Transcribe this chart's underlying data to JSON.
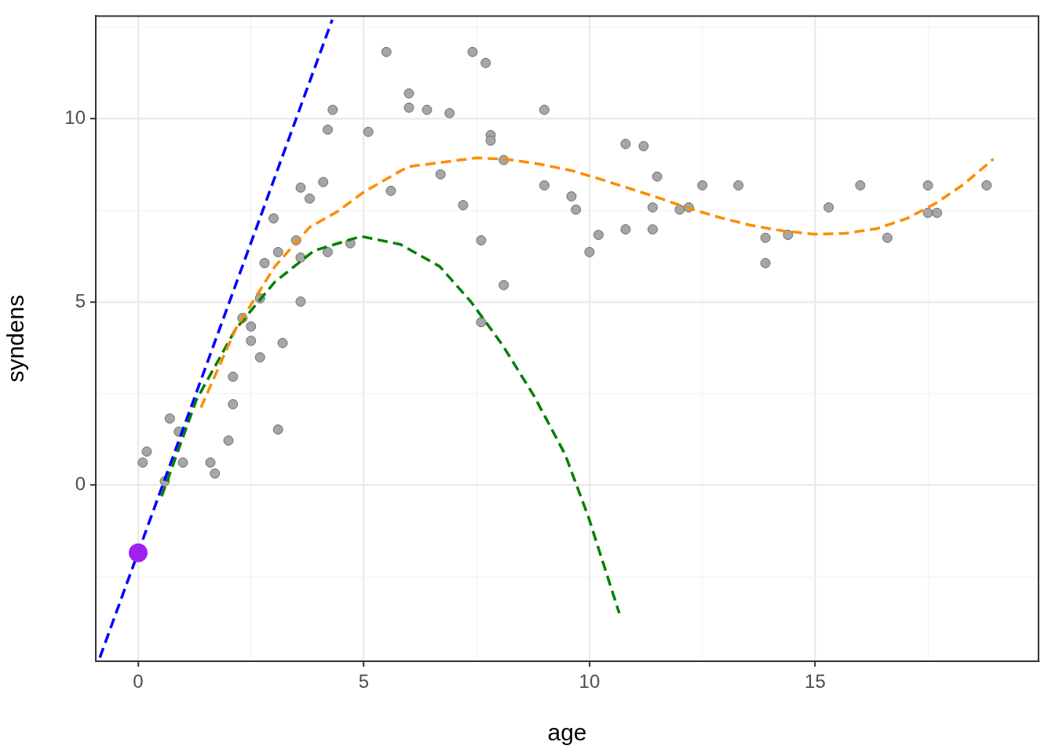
{
  "chart_data": {
    "type": "scatter",
    "xlabel": "age",
    "ylabel": "syndens",
    "xlim": [
      -0.94,
      19.95
    ],
    "ylim": [
      -4.8,
      12.8
    ],
    "xticks": [
      0,
      {
        "value": 2.5,
        "label": null
      },
      5,
      {
        "value": 7.5,
        "label": null
      },
      10,
      {
        "value": 12.5,
        "label": null
      },
      15,
      {
        "value": 17.5,
        "label": null
      }
    ],
    "yticks": [
      {
        "value": -2.5,
        "label": null
      },
      0,
      {
        "value": 2.5,
        "label": null
      },
      5,
      {
        "value": 7.5,
        "label": null
      },
      10,
      {
        "value": 12.5,
        "label": null
      }
    ],
    "grid": true,
    "legend": false,
    "marker": "circle",
    "series": [
      {
        "color": "#a6a6a6",
        "x": [
          0.1,
          0.19,
          0.59,
          0.7,
          0.9,
          0.99,
          1.6,
          1.7,
          2.0,
          2.1,
          2.1,
          2.31,
          2.5,
          2.5,
          2.7,
          2.7,
          2.8,
          3.0,
          3.1,
          3.1,
          3.2,
          3.5,
          3.6,
          3.6,
          3.6,
          3.8,
          4.1,
          4.2,
          4.2,
          4.31,
          4.7,
          5.1,
          5.5,
          5.6,
          6.0,
          6.0,
          6.4,
          6.7,
          6.9,
          7.2,
          7.41,
          7.6,
          7.6,
          7.7,
          7.81,
          7.81,
          8.1,
          8.1,
          9.0,
          9.0,
          9.6,
          9.7,
          10.0,
          10.2,
          10.8,
          10.8,
          11.2,
          11.4,
          11.4,
          11.5,
          12.0,
          12.2,
          12.5,
          13.3,
          13.9,
          13.9,
          14.4,
          15.3,
          16.0,
          16.6,
          17.5,
          17.5,
          17.7,
          18.8
        ],
        "values": [
          0.62,
          0.92,
          0.11,
          1.82,
          1.46,
          0.62,
          0.62,
          0.32,
          1.22,
          2.96,
          2.21,
          4.56,
          4.33,
          3.94,
          3.49,
          5.1,
          6.06,
          7.28,
          6.36,
          1.52,
          3.88,
          6.68,
          8.12,
          6.21,
          5.01,
          7.82,
          8.27,
          9.7,
          6.36,
          10.24,
          6.6,
          9.64,
          11.82,
          8.03,
          10.69,
          10.3,
          10.24,
          8.48,
          10.15,
          7.64,
          11.82,
          6.68,
          4.45,
          11.52,
          9.55,
          9.4,
          8.87,
          5.46,
          10.24,
          8.18,
          7.88,
          7.52,
          6.36,
          6.83,
          9.31,
          6.98,
          9.25,
          7.58,
          6.98,
          8.42,
          7.52,
          7.58,
          8.18,
          8.18,
          6.75,
          6.06,
          6.83,
          7.58,
          8.18,
          6.75,
          8.18,
          7.43,
          7.43,
          8.18
        ]
      },
      {
        "type": "line",
        "color": "#0000ff",
        "line_style": "dashed",
        "marker": "none",
        "x": [
          -0.85,
          4.3
        ],
        "values": [
          -4.7,
          12.7
        ]
      },
      {
        "type": "line",
        "color": "#ff8c00",
        "line_style": "dashed",
        "marker": "none",
        "x": [
          1.39,
          2.16,
          3.03,
          3.8,
          4.42,
          5.0,
          5.98,
          7.5,
          8.19,
          8.89,
          9.58,
          10.24,
          10.9,
          11.58,
          12.24,
          12.9,
          13.58,
          14.28,
          14.97,
          15.67,
          16.37,
          17.04,
          17.67,
          18.28,
          18.8,
          18.95
        ],
        "values": [
          2.12,
          4.26,
          5.97,
          7.04,
          7.47,
          8.0,
          8.69,
          8.93,
          8.89,
          8.76,
          8.59,
          8.35,
          8.09,
          7.82,
          7.54,
          7.3,
          7.09,
          6.94,
          6.85,
          6.87,
          7.0,
          7.28,
          7.69,
          8.2,
          8.74,
          8.9
        ]
      },
      {
        "type": "line",
        "color": "#008000",
        "line_style": "dashed",
        "marker": "none",
        "x": [
          0.52,
          1.29,
          2.16,
          3.03,
          3.9,
          4.94,
          5.81,
          6.68,
          7.37,
          8.07,
          8.77,
          9.46,
          9.98,
          10.66
        ],
        "values": [
          -0.3,
          2.33,
          4.26,
          5.55,
          6.4,
          6.79,
          6.57,
          5.97,
          5.01,
          3.83,
          2.44,
          0.84,
          -0.88,
          -3.49
        ]
      },
      {
        "color": "#a020f0",
        "x": [
          0
        ],
        "values": [
          -1.84
        ]
      }
    ]
  }
}
